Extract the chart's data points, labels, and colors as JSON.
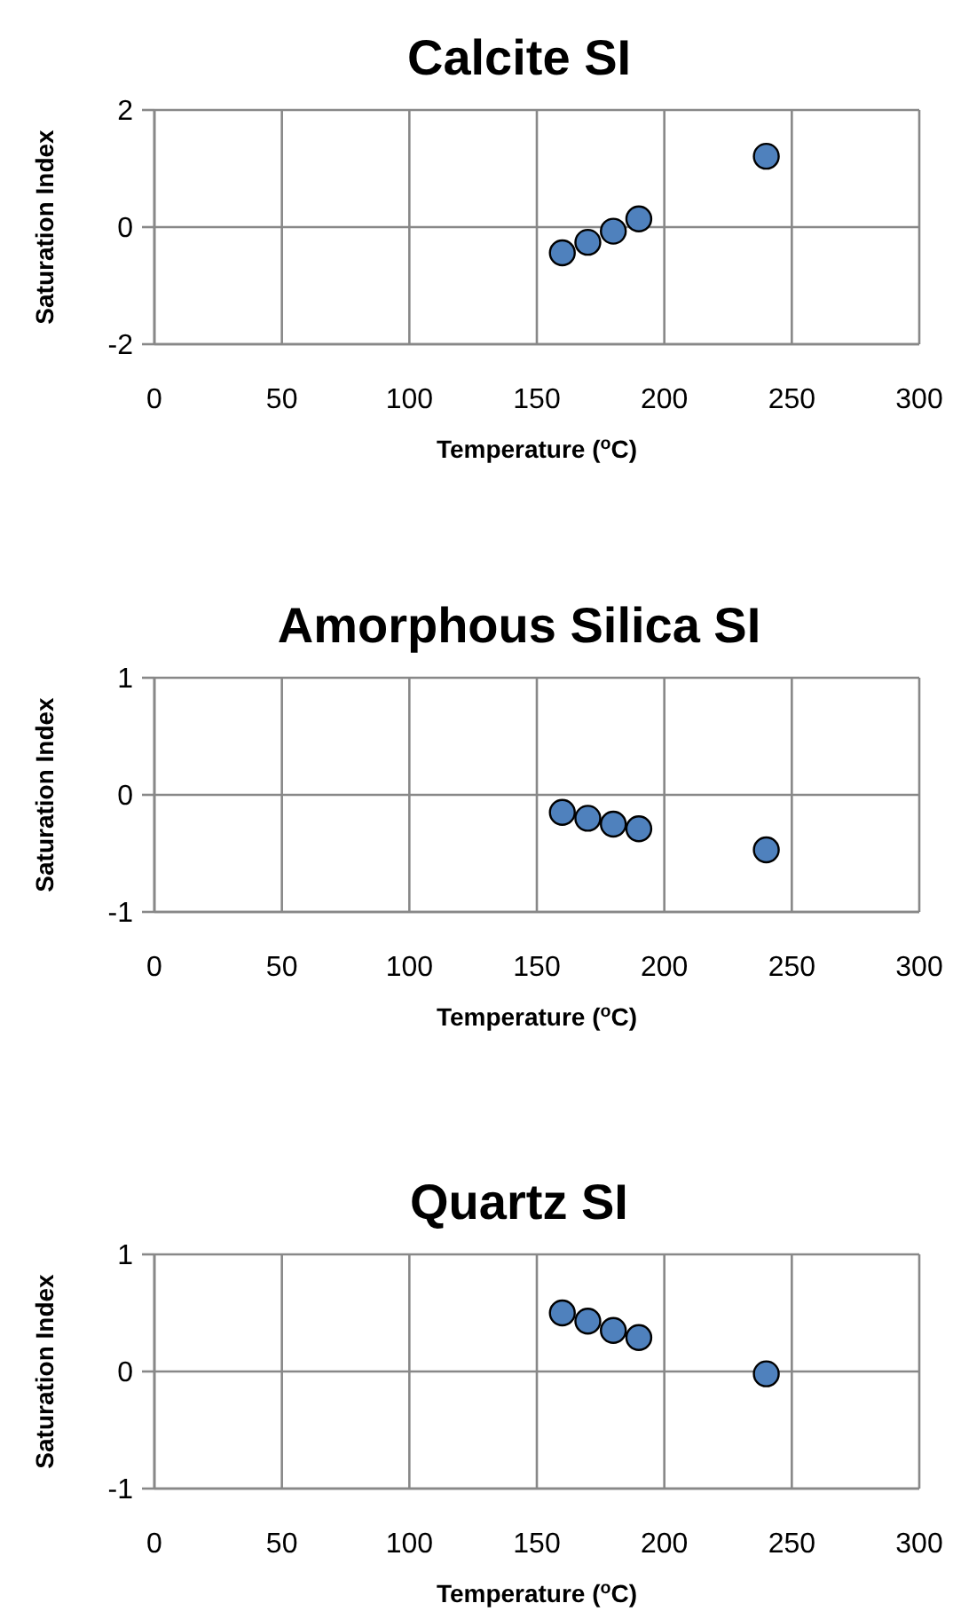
{
  "chart_data": [
    {
      "type": "scatter",
      "title": "Calcite SI",
      "xlabel": "Temperature ($^{o}$C)",
      "ylabel": "Saturation Index",
      "x": [
        160,
        170,
        180,
        190,
        240
      ],
      "series": [
        {
          "color": "#4f81bd",
          "values": [
            -0.44,
            -0.26,
            -0.07,
            0.14,
            1.21
          ]
        }
      ],
      "xlim": [
        0,
        300
      ],
      "xticks": [
        0,
        50,
        100,
        150,
        200,
        250,
        300
      ],
      "ylim": [
        -2,
        2
      ],
      "yticks": [
        -2,
        0,
        2
      ],
      "grid": true,
      "marker": "circle"
    },
    {
      "type": "scatter",
      "title": "Amorphous Silica SI",
      "xlabel": "Temperature ($^{o}$C)",
      "ylabel": "Saturation Index",
      "x": [
        160,
        170,
        180,
        190,
        240
      ],
      "series": [
        {
          "color": "#4f81bd",
          "values": [
            -0.15,
            -0.2,
            -0.25,
            -0.29,
            -0.47
          ]
        }
      ],
      "xlim": [
        0,
        300
      ],
      "xticks": [
        0,
        50,
        100,
        150,
        200,
        250,
        300
      ],
      "ylim": [
        -1,
        1
      ],
      "yticks": [
        -1,
        0,
        1
      ],
      "grid": true,
      "marker": "circle"
    },
    {
      "type": "scatter",
      "title": "Quartz SI",
      "xlabel": "Temperature ($^{o}$C)",
      "ylabel": "Saturation Index",
      "x": [
        160,
        170,
        180,
        190,
        240
      ],
      "series": [
        {
          "color": "#4f81bd",
          "values": [
            0.5,
            0.43,
            0.35,
            0.29,
            -0.02
          ]
        }
      ],
      "xlim": [
        0,
        300
      ],
      "xticks": [
        0,
        50,
        100,
        150,
        200,
        250,
        300
      ],
      "ylim": [
        -1,
        1
      ],
      "yticks": [
        -1,
        0,
        1
      ],
      "grid": true,
      "marker": "circle"
    }
  ]
}
